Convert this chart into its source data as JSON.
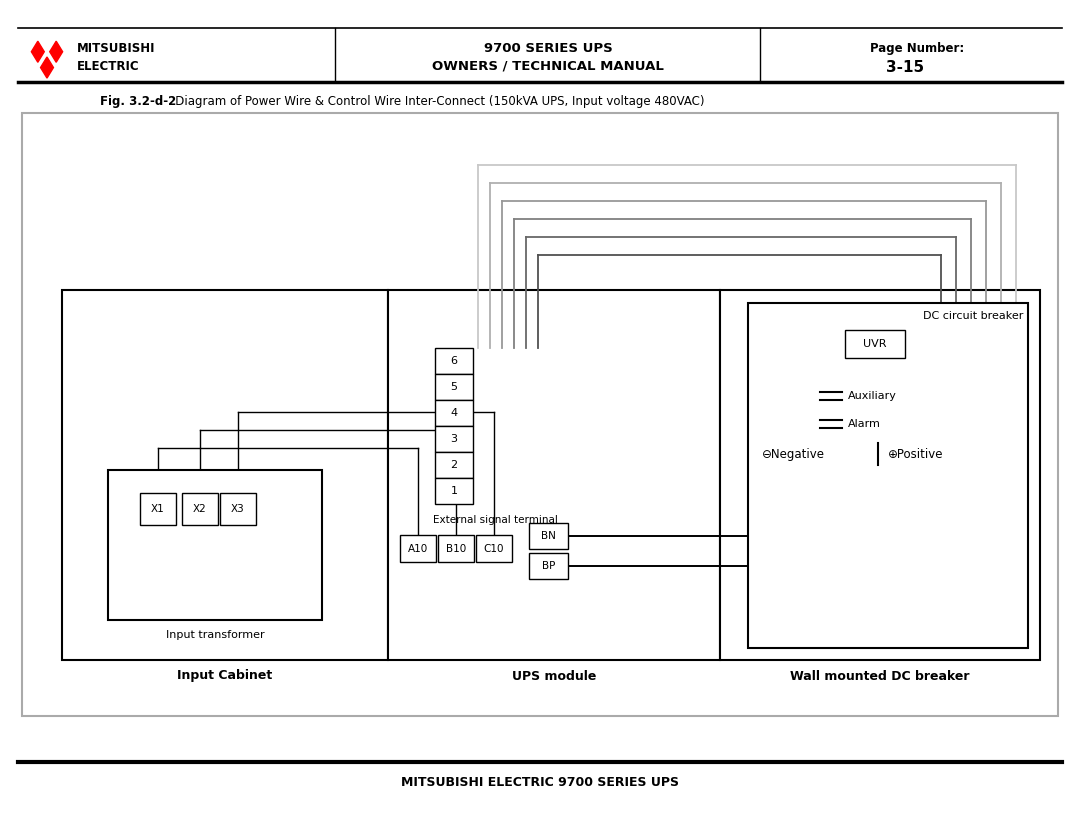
{
  "header_title1": "MITSUBISHI",
  "header_title2": "ELECTRIC",
  "header_center1": "9700 SERIES UPS",
  "header_center2": "OWNERS / TECHNICAL MANUAL",
  "header_right1": "Page Number:",
  "header_right2": "3-15",
  "fig_caption_bold": "Fig. 3.2-d-2",
  "fig_caption_normal": "   Diagram of Power Wire & Control Wire Inter-Connect (150kVA UPS, Input voltage 480VAC)",
  "footer_text": "MITSUBISHI ELECTRIC 9700 SERIES UPS",
  "label_input_cabinet": "Input Cabinet",
  "label_ups_module": "UPS module",
  "label_wall_dc": "Wall mounted DC breaker",
  "label_input_transformer": "Input transformer",
  "label_external_signal": "External signal terminal",
  "label_dc_circuit_breaker": "DC circuit breaker",
  "label_uvr": "UVR",
  "label_auxiliary": "Auxiliary",
  "label_alarm": "Alarm",
  "label_negative": "⊖Negative",
  "label_positive": "⊕Positive",
  "terminal_numbers": [
    "6",
    "5",
    "4",
    "3",
    "2",
    "1"
  ],
  "terminal_abc": [
    "A10",
    "B10",
    "C10"
  ],
  "terminal_bn_bp": [
    "BN",
    "BP"
  ],
  "transformer_terminals": [
    "X1",
    "X2",
    "X3"
  ]
}
